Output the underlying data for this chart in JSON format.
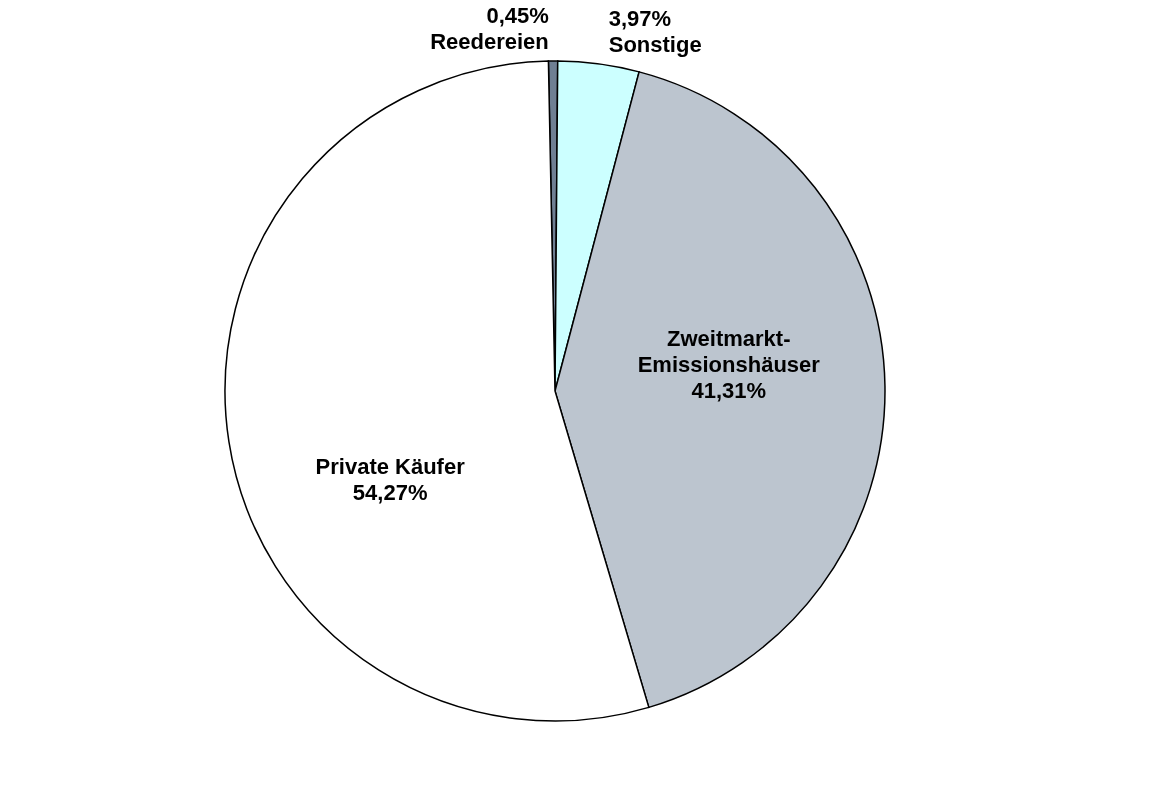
{
  "chart_data": {
    "type": "pie",
    "categories": [
      "Reedereien",
      "Sonstige",
      "Zweitmarkt-Emissionshäuser",
      "Private Käufer"
    ],
    "values": [
      0.45,
      3.97,
      41.31,
      54.27
    ],
    "value_labels": [
      "0,45%",
      "3,97%",
      "41,31%",
      "54,27%"
    ],
    "colors": [
      "#6f7f93",
      "#ccffff",
      "#bcc5cf",
      "#ffffff"
    ],
    "legend": false
  }
}
